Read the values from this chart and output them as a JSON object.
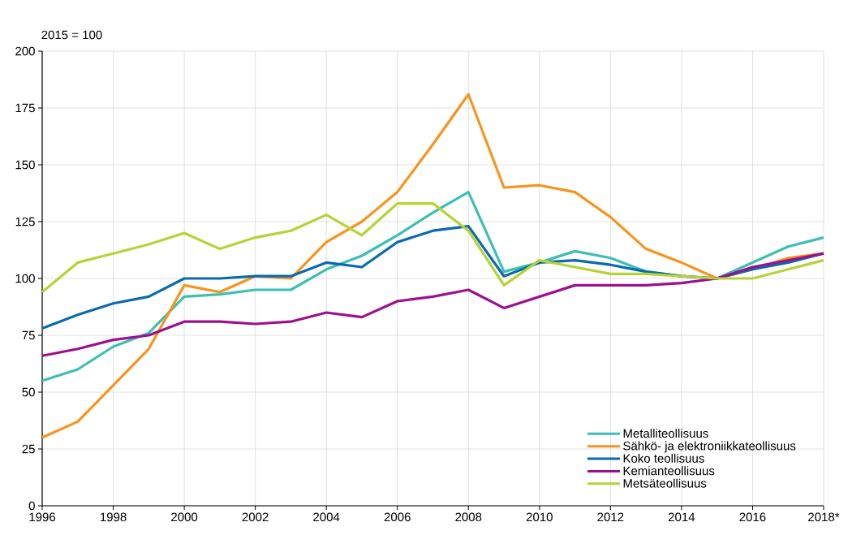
{
  "chart_data": {
    "type": "line",
    "ylabel": "2015 = 100",
    "x": [
      1996,
      1997,
      1998,
      1999,
      2000,
      2001,
      2002,
      2003,
      2004,
      2005,
      2006,
      2007,
      2008,
      2009,
      2010,
      2011,
      2012,
      2013,
      2014,
      2015,
      2016,
      2017,
      2018
    ],
    "series": [
      {
        "name": "Metalliteollisuus",
        "color": "#3cbfb4",
        "values": [
          55,
          60,
          70,
          76,
          92,
          93,
          95,
          95,
          104,
          110,
          119,
          129,
          138,
          103,
          107,
          112,
          109,
          103,
          101,
          100,
          107,
          114,
          118
        ]
      },
      {
        "name": "Sähkö- ja elektroniikkateollisuus",
        "color": "#f7941d",
        "values": [
          30,
          37,
          53,
          69,
          97,
          94,
          101,
          100,
          116,
          125,
          138,
          159,
          181,
          140,
          141,
          138,
          127,
          113,
          107,
          100,
          104,
          109,
          111
        ]
      },
      {
        "name": "Koko teollisuus",
        "color": "#0a6aad",
        "values": [
          78,
          84,
          89,
          92,
          100,
          100,
          101,
          101,
          107,
          105,
          116,
          121,
          123,
          101,
          107,
          108,
          106,
          103,
          101,
          100,
          104,
          107,
          111
        ]
      },
      {
        "name": "Kemianteollisuus",
        "color": "#9c0f8f",
        "values": [
          66,
          69,
          73,
          75,
          81,
          81,
          80,
          81,
          85,
          83,
          90,
          92,
          95,
          87,
          92,
          97,
          97,
          97,
          98,
          100,
          105,
          108,
          111
        ]
      },
      {
        "name": "Metsäteollisuus",
        "color": "#b5d334",
        "values": [
          94,
          107,
          111,
          115,
          120,
          113,
          118,
          121,
          128,
          119,
          133,
          133,
          121,
          97,
          108,
          105,
          102,
          102,
          101,
          100,
          100,
          104,
          108
        ]
      }
    ],
    "xlim": [
      1996,
      2018
    ],
    "xticks": [
      1996,
      1998,
      2000,
      2002,
      2004,
      2006,
      2008,
      2010,
      2012,
      2014,
      2016,
      {
        "value": 2018,
        "label": "2018*"
      }
    ],
    "ylim": [
      0,
      200
    ],
    "yticks": [
      0,
      25,
      50,
      75,
      100,
      125,
      150,
      175,
      200
    ],
    "grid": true,
    "legend": "bottom right",
    "marker": "none",
    "line_style": "solid"
  }
}
